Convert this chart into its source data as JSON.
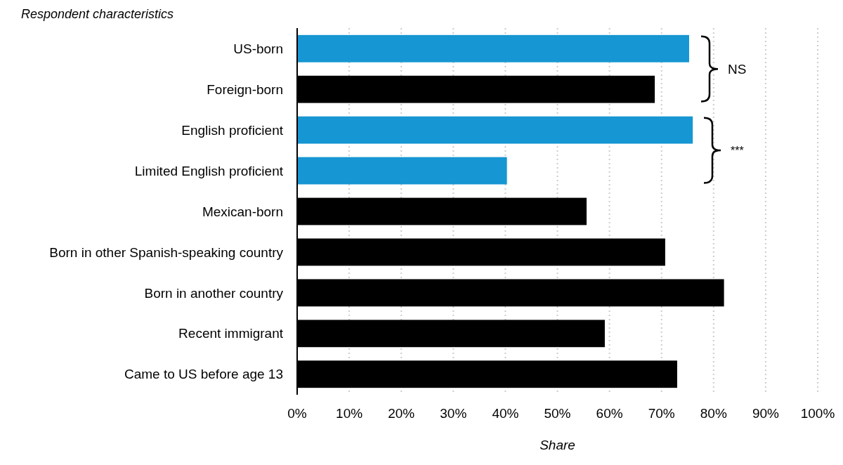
{
  "chart_data": {
    "type": "bar",
    "orientation": "horizontal",
    "ylabel": "Respondent characteristics",
    "xlabel": "Share",
    "categories": [
      "US-born",
      "Foreign-born",
      "English proficient",
      "Limited English proficient",
      "Mexican-born",
      "Born in other Spanish-speaking country",
      "Born in another country",
      "Recent immigrant",
      "Came to US before age 13"
    ],
    "values": [
      75.3,
      68.7,
      76.0,
      40.3,
      55.6,
      70.7,
      82.0,
      59.1,
      73.0
    ],
    "colors": [
      "#1696d2",
      "#000000",
      "#1696d2",
      "#1696d2",
      "#000000",
      "#000000",
      "#000000",
      "#000000",
      "#000000"
    ],
    "xlim": [
      0,
      100
    ],
    "xticks": [
      {
        "value": 0,
        "label": "0%"
      },
      {
        "value": 10,
        "label": "10%"
      },
      {
        "value": 20,
        "label": "20%"
      },
      {
        "value": 30,
        "label": "30%"
      },
      {
        "value": 40,
        "label": "40%"
      },
      {
        "value": 50,
        "label": "50%"
      },
      {
        "value": 60,
        "label": "60%"
      },
      {
        "value": 70,
        "label": "70%"
      },
      {
        "value": 80,
        "label": "80%"
      },
      {
        "value": 90,
        "label": "90%"
      },
      {
        "value": 100,
        "label": "100%"
      }
    ],
    "grid": "x",
    "annotations": [
      "NS",
      "***"
    ]
  }
}
